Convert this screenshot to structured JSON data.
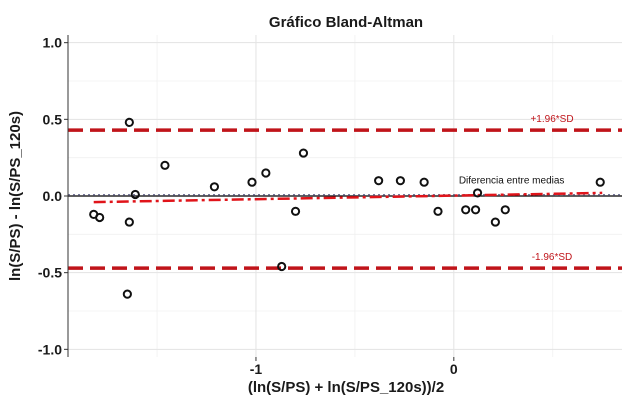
{
  "chart_data": {
    "type": "scatter",
    "title": "Gráfico Bland-Altman",
    "xlabel": "(ln(S/PS) + ln(S/PS_120s))/2",
    "ylabel": "ln(S/PS) - ln(S/PS_120s)",
    "xlim": [
      -1.95,
      0.85
    ],
    "ylim": [
      -1.05,
      1.05
    ],
    "x_ticks": [
      -1,
      0
    ],
    "x_tick_labels": [
      "-1",
      "0"
    ],
    "y_ticks": [
      1.0,
      0.5,
      0.0,
      -0.5,
      -1.0
    ],
    "y_tick_labels": [
      "1.0",
      "0.5",
      "0.0",
      "-0.5",
      "-1.0"
    ],
    "grid": true,
    "points": [
      {
        "x": -1.82,
        "y": -0.12
      },
      {
        "x": -1.79,
        "y": -0.14
      },
      {
        "x": -1.64,
        "y": 0.48
      },
      {
        "x": -1.64,
        "y": -0.17
      },
      {
        "x": -1.65,
        "y": -0.64
      },
      {
        "x": -1.61,
        "y": 0.01
      },
      {
        "x": -1.46,
        "y": 0.2
      },
      {
        "x": -1.21,
        "y": 0.06
      },
      {
        "x": -1.02,
        "y": 0.09
      },
      {
        "x": -0.95,
        "y": 0.15
      },
      {
        "x": -0.87,
        "y": -0.46
      },
      {
        "x": -0.8,
        "y": -0.1
      },
      {
        "x": -0.76,
        "y": 0.28
      },
      {
        "x": -0.38,
        "y": 0.1
      },
      {
        "x": -0.27,
        "y": 0.1
      },
      {
        "x": -0.15,
        "y": 0.09
      },
      {
        "x": -0.08,
        "y": -0.1
      },
      {
        "x": 0.06,
        "y": -0.09
      },
      {
        "x": 0.11,
        "y": -0.09
      },
      {
        "x": 0.12,
        "y": 0.02
      },
      {
        "x": 0.21,
        "y": -0.17
      },
      {
        "x": 0.26,
        "y": -0.09
      },
      {
        "x": 0.74,
        "y": 0.09
      }
    ],
    "reference_lines": {
      "upper_loa": {
        "y": 0.43,
        "label": "+1.96*SD",
        "style": "dashed",
        "color": "#c0141a"
      },
      "lower_loa": {
        "y": -0.47,
        "label": "-1.96*SD",
        "style": "dashed",
        "color": "#c0141a"
      },
      "zero": {
        "y": 0.0,
        "color": "#000000"
      },
      "mean": {
        "y": -0.002,
        "style": "dotted",
        "color": "#7a7a9a"
      },
      "trend": {
        "x": [
          -1.82,
          0.75
        ],
        "y": [
          -0.04,
          0.02
        ],
        "style": "dash-dot",
        "color": "#e0141a"
      }
    },
    "annotations": [
      {
        "text": "Diferencia entre medias",
        "x": 0.65,
        "y": 0.1
      }
    ]
  }
}
